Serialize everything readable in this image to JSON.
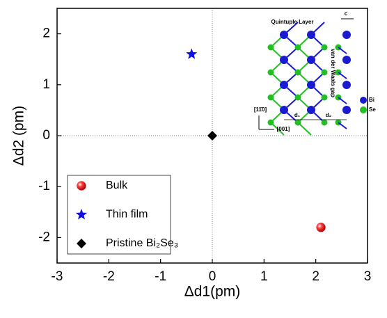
{
  "chart_data": {
    "type": "scatter",
    "x_label": "Δd1(pm)",
    "y_label": "Δd2 (pm)",
    "xlim": [
      -3,
      3
    ],
    "ylim": [
      -2.5,
      2.5
    ],
    "xticks": [
      -3,
      -2,
      -1,
      0,
      1,
      2,
      3
    ],
    "yticks": [
      -2,
      -1,
      0,
      1,
      2
    ],
    "zero_lines": true,
    "legend": "lower left",
    "series": [
      {
        "name": "Bulk",
        "color": "#e41a1c",
        "marker": "sphere",
        "x": [
          2.1
        ],
        "values": [
          -1.8
        ]
      },
      {
        "name": "Thin film",
        "color": "#1010e0",
        "marker": "star",
        "x": [
          -0.4
        ],
        "values": [
          1.6
        ]
      },
      {
        "name": "Pristine Bi₂Se₃",
        "color": "#000000",
        "marker": "diamond",
        "x": [
          0
        ],
        "values": [
          0
        ]
      }
    ],
    "inset": {
      "title": "Quintuple Layer",
      "gap": "van der Waals gap",
      "c": "c",
      "species": [
        {
          "name": "Bi",
          "color": "#1a1ad0"
        },
        {
          "name": "Se",
          "color": "#22c022"
        }
      ],
      "dir_y": "[11̄0]",
      "dir_x": "[001]",
      "d1": "d₁",
      "d2": "d₂"
    }
  }
}
